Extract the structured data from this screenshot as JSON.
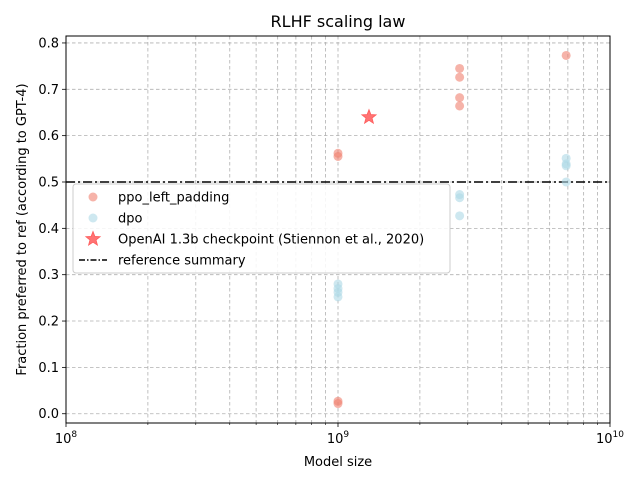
{
  "chart_data": {
    "type": "scatter",
    "title": "RLHF scaling law",
    "xlabel": "Model size",
    "ylabel": "Fraction preferred to ref (according to GPT-4)",
    "xscale": "log",
    "xlim": [
      100000000,
      10000000000
    ],
    "ylim": [
      -0.02,
      0.815
    ],
    "x_tick_labels": [
      {
        "value": 100000000,
        "base": "10",
        "exp": "8"
      },
      {
        "value": 1000000000,
        "base": "10",
        "exp": "9"
      },
      {
        "value": 10000000000,
        "base": "10",
        "exp": "10"
      }
    ],
    "y_ticks": [
      0.0,
      0.1,
      0.2,
      0.3,
      0.4,
      0.5,
      0.6,
      0.7,
      0.8
    ],
    "y_tick_labels": [
      "0.0",
      "0.1",
      "0.2",
      "0.3",
      "0.4",
      "0.5",
      "0.6",
      "0.7",
      "0.8"
    ],
    "grid": true,
    "legend_position": "center-left",
    "series": [
      {
        "name": "ppo_left_padding",
        "marker": "circle",
        "color": "#f08070",
        "points": [
          {
            "x": 1000000000,
            "y": 0.562
          },
          {
            "x": 1000000000,
            "y": 0.555
          },
          {
            "x": 1000000000,
            "y": 0.027
          },
          {
            "x": 1000000000,
            "y": 0.022
          },
          {
            "x": 2800000000,
            "y": 0.745
          },
          {
            "x": 2800000000,
            "y": 0.726
          },
          {
            "x": 2800000000,
            "y": 0.682
          },
          {
            "x": 2800000000,
            "y": 0.664
          },
          {
            "x": 6900000000,
            "y": 0.773
          }
        ]
      },
      {
        "name": "dpo",
        "marker": "circle",
        "color": "#add8e6",
        "points": [
          {
            "x": 1000000000,
            "y": 0.28
          },
          {
            "x": 1000000000,
            "y": 0.27
          },
          {
            "x": 1000000000,
            "y": 0.262
          },
          {
            "x": 1000000000,
            "y": 0.252
          },
          {
            "x": 2800000000,
            "y": 0.473
          },
          {
            "x": 2800000000,
            "y": 0.466
          },
          {
            "x": 2800000000,
            "y": 0.427
          },
          {
            "x": 6900000000,
            "y": 0.551
          },
          {
            "x": 6900000000,
            "y": 0.539
          },
          {
            "x": 6900000000,
            "y": 0.535
          },
          {
            "x": 6900000000,
            "y": 0.5
          }
        ]
      },
      {
        "name": "OpenAI 1.3b checkpoint (Stiennon et al., 2020)",
        "marker": "star",
        "color": "#ff5a5a",
        "points": [
          {
            "x": 1300000000,
            "y": 0.64
          }
        ]
      }
    ],
    "reference_line": {
      "name": "reference summary",
      "y": 0.5,
      "style": "dashdot",
      "color": "#000000"
    }
  }
}
